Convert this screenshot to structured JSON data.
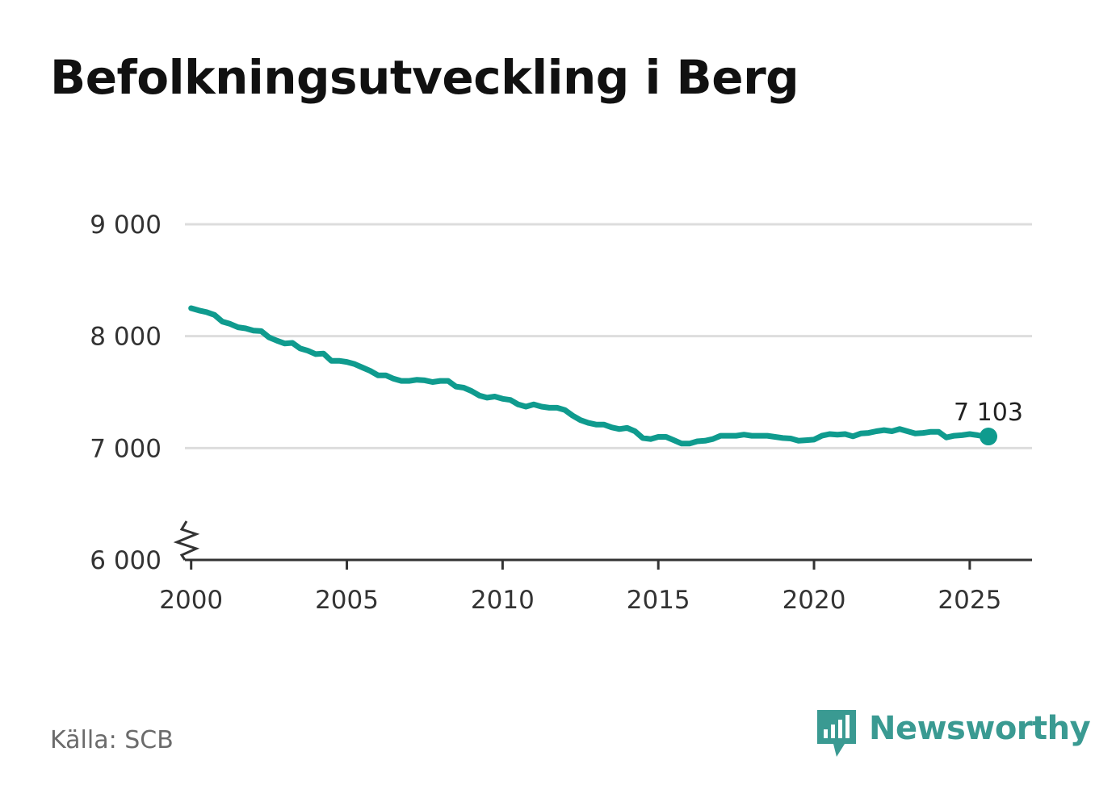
{
  "source": "Källa: SCB",
  "brand": {
    "name": "Newsworthy",
    "logo_icon": "newsworthy-chart-bubble-icon",
    "color": "#3a9a92"
  },
  "chart_data": {
    "type": "line",
    "title": "Befolkningsutveckling i Berg",
    "xlabel": "",
    "ylabel": "",
    "xlim": [
      1999.8,
      2027.0
    ],
    "ylim": [
      6000,
      9000
    ],
    "y_axis_break": true,
    "grid": true,
    "line_color": "#0f9b8e",
    "x_ticks": [
      2000,
      2005,
      2010,
      2015,
      2020,
      2025
    ],
    "x_tick_labels": [
      "2000",
      "2005",
      "2010",
      "2015",
      "2020",
      "2025"
    ],
    "y_ticks": [
      6000,
      7000,
      8000,
      9000
    ],
    "y_tick_labels": [
      "6 000",
      "7 000",
      "8 000",
      "9 000"
    ],
    "end_label": "7 103",
    "series": [
      {
        "x": [
          2000.0,
          2000.25,
          2000.5,
          2000.75,
          2001.0,
          2001.25,
          2001.5,
          2001.75,
          2002.0,
          2002.25,
          2002.5,
          2002.75,
          2003.0,
          2003.25,
          2003.5,
          2003.75,
          2004.0,
          2004.25,
          2004.5,
          2004.75,
          2005.0,
          2005.25,
          2005.5,
          2005.75,
          2006.0,
          2006.25,
          2006.5,
          2006.75,
          2007.0,
          2007.25,
          2007.5,
          2007.75,
          2008.0,
          2008.25,
          2008.5,
          2008.75,
          2009.0,
          2009.25,
          2009.5,
          2009.75,
          2010.0,
          2010.25,
          2010.5,
          2010.75,
          2011.0,
          2011.25,
          2011.5,
          2011.75,
          2012.0,
          2012.25,
          2012.5,
          2012.75,
          2013.0,
          2013.25,
          2013.5,
          2013.75,
          2014.0,
          2014.25,
          2014.5,
          2014.75,
          2015.0,
          2015.25,
          2015.5,
          2015.75,
          2016.0,
          2016.25,
          2016.5,
          2016.75,
          2017.0,
          2017.25,
          2017.5,
          2017.75,
          2018.0,
          2018.25,
          2018.5,
          2018.75,
          2019.0,
          2019.25,
          2019.5,
          2019.75,
          2020.0,
          2020.25,
          2020.5,
          2020.75,
          2021.0,
          2021.25,
          2021.5,
          2021.75,
          2022.0,
          2022.25,
          2022.5,
          2022.75,
          2023.0,
          2023.25,
          2023.5,
          2023.75,
          2024.0,
          2024.25,
          2024.5,
          2024.75,
          2025.0,
          2025.25,
          2025.5,
          2025.6
        ],
        "values": [
          8250,
          8230,
          8215,
          8190,
          8130,
          8110,
          8080,
          8070,
          8050,
          8045,
          7990,
          7960,
          7935,
          7940,
          7890,
          7870,
          7840,
          7845,
          7780,
          7780,
          7770,
          7750,
          7720,
          7690,
          7650,
          7650,
          7620,
          7600,
          7600,
          7610,
          7605,
          7590,
          7600,
          7600,
          7550,
          7540,
          7510,
          7470,
          7450,
          7460,
          7440,
          7430,
          7390,
          7370,
          7390,
          7370,
          7360,
          7360,
          7340,
          7290,
          7250,
          7225,
          7210,
          7210,
          7185,
          7170,
          7180,
          7150,
          7090,
          7080,
          7100,
          7100,
          7070,
          7040,
          7040,
          7060,
          7065,
          7080,
          7110,
          7110,
          7110,
          7120,
          7110,
          7110,
          7110,
          7100,
          7090,
          7085,
          7065,
          7070,
          7075,
          7110,
          7125,
          7120,
          7125,
          7105,
          7130,
          7135,
          7150,
          7160,
          7150,
          7170,
          7150,
          7130,
          7135,
          7145,
          7145,
          7095,
          7110,
          7115,
          7125,
          7115,
          7103,
          7103
        ]
      }
    ]
  }
}
